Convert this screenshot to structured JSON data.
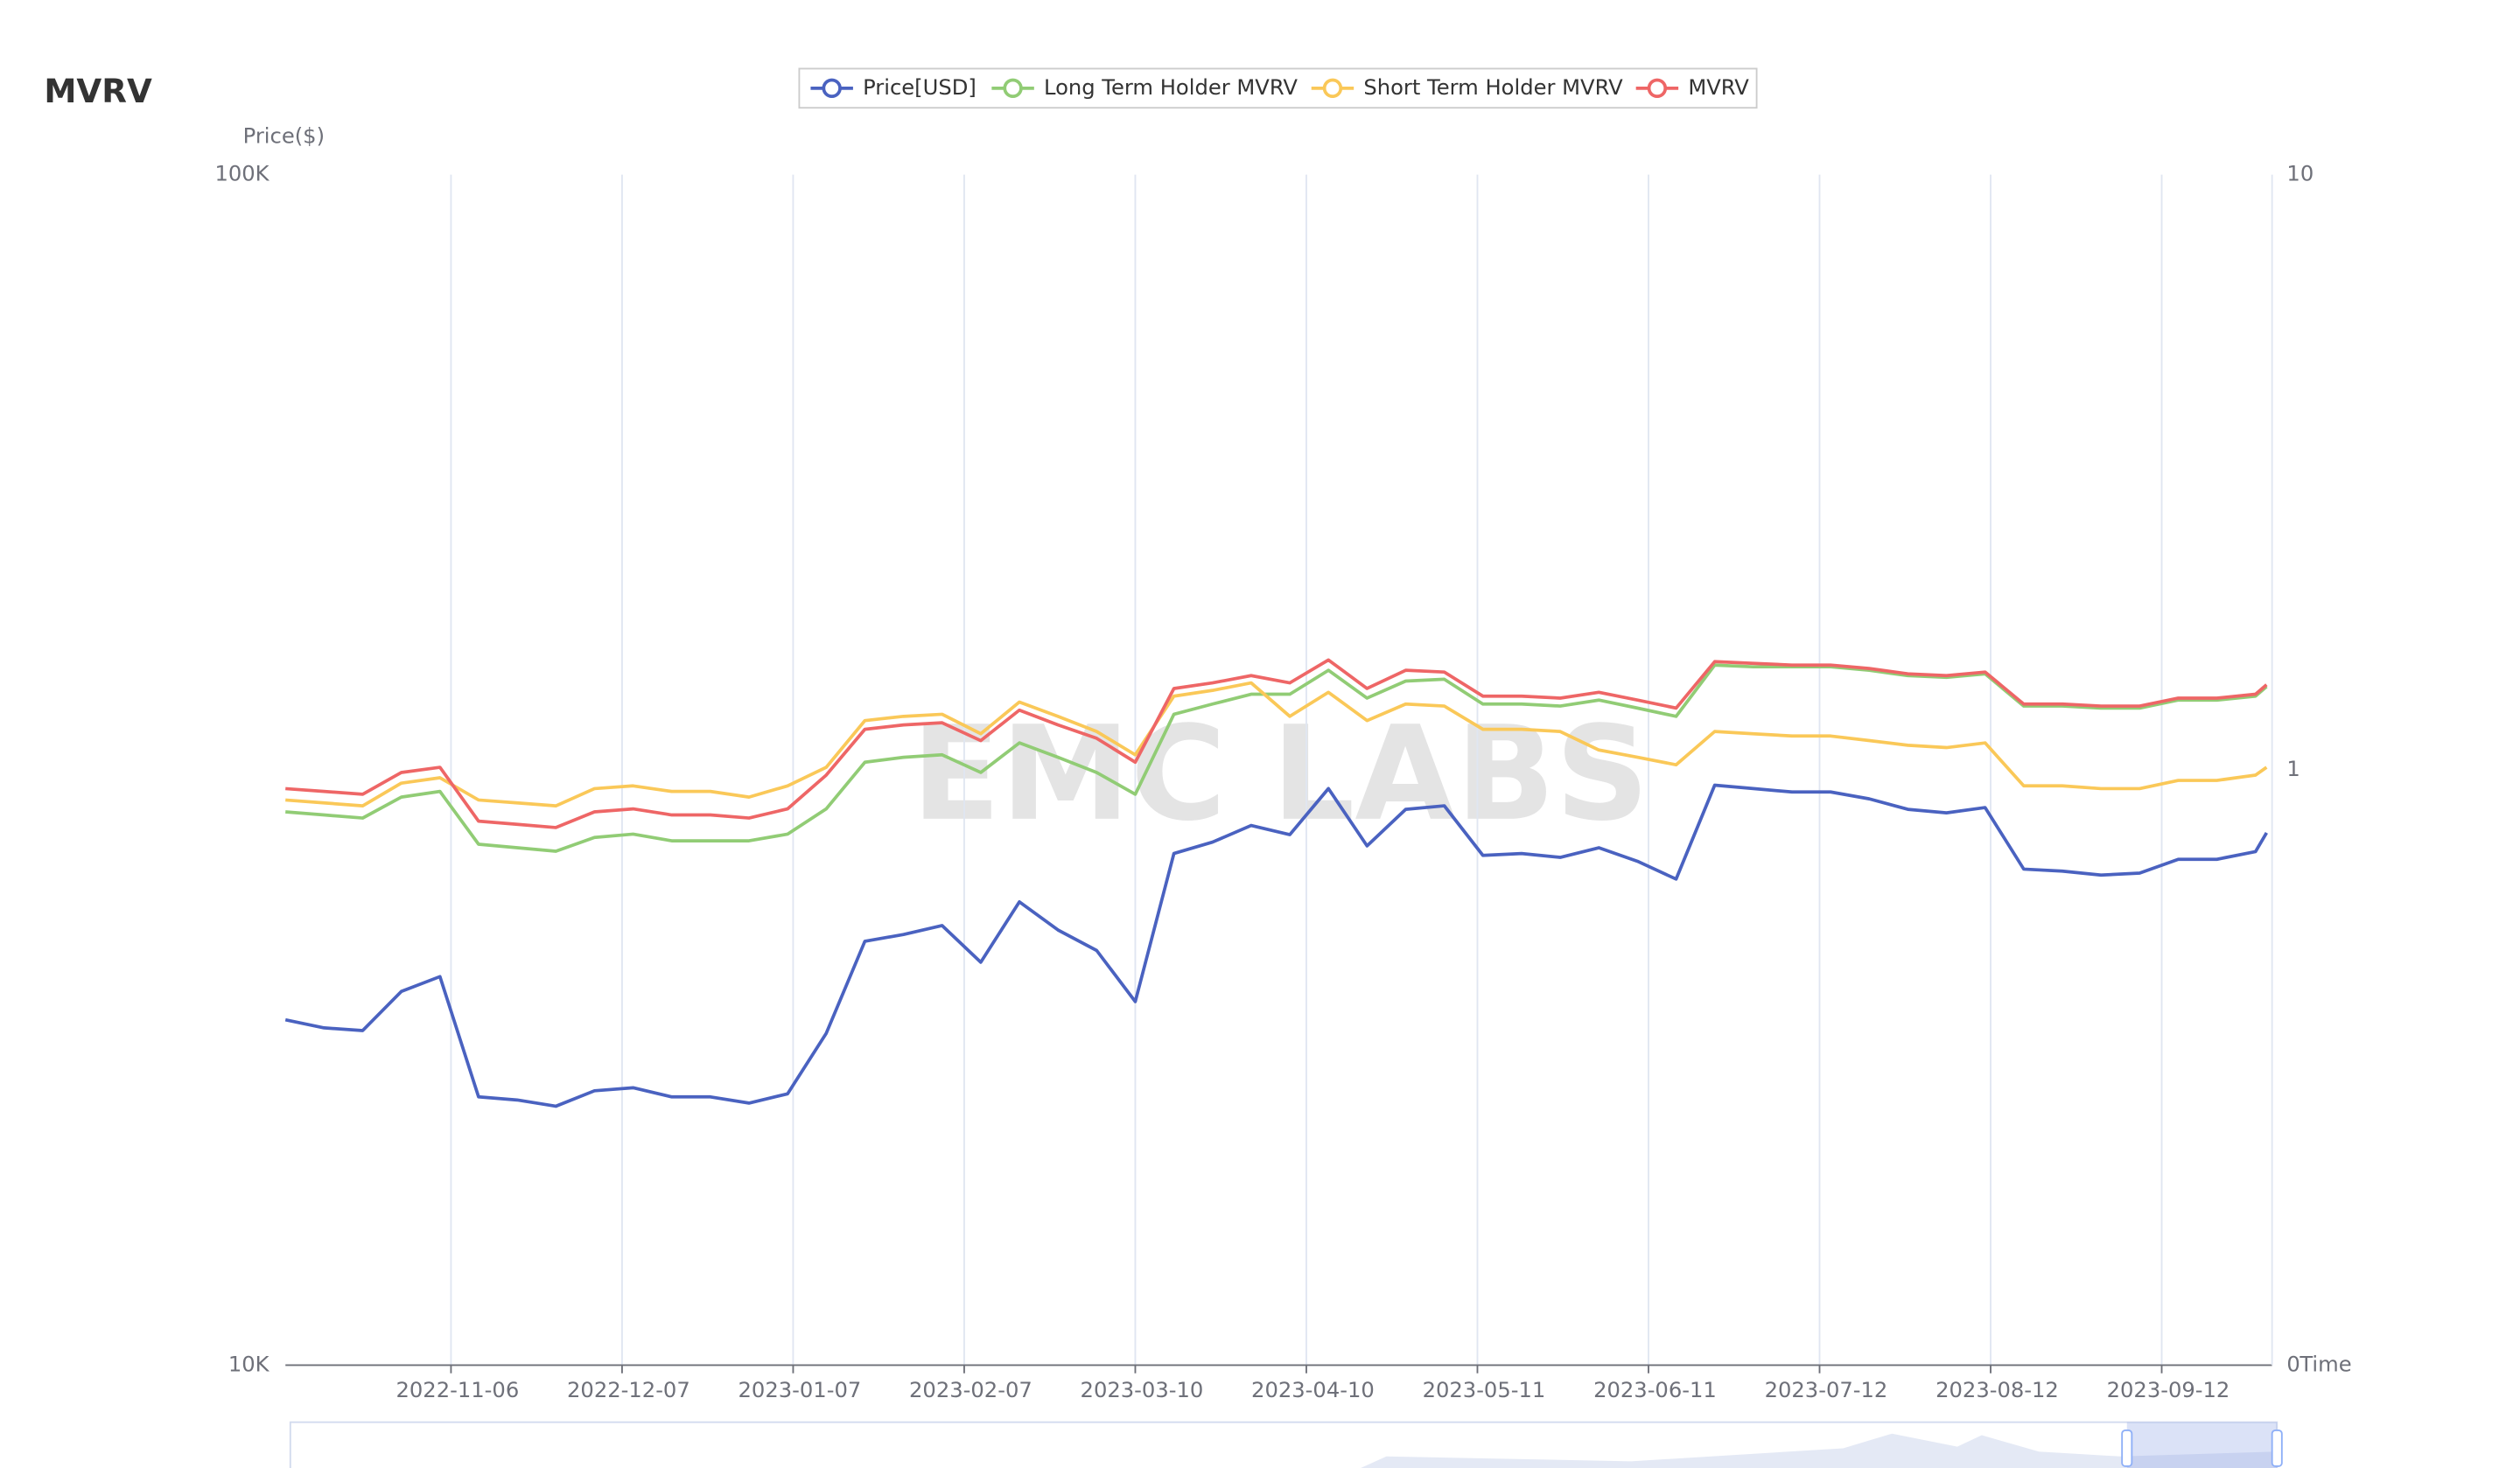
{
  "chart_data": {
    "type": "line",
    "title": "MVRV",
    "ylabel": "Price($)",
    "xlabel": "Time",
    "watermark": "EMC LABS",
    "log_scale": true,
    "grid": "x",
    "x": [
      "2022-10-07",
      "2022-10-14",
      "2022-10-21",
      "2022-10-28",
      "2022-11-04",
      "2022-11-11",
      "2022-11-18",
      "2022-11-25",
      "2022-12-02",
      "2022-12-09",
      "2022-12-16",
      "2022-12-23",
      "2022-12-30",
      "2023-01-06",
      "2023-01-13",
      "2023-01-20",
      "2023-01-27",
      "2023-02-03",
      "2023-02-10",
      "2023-02-17",
      "2023-02-24",
      "2023-03-03",
      "2023-03-10",
      "2023-03-17",
      "2023-03-24",
      "2023-03-31",
      "2023-04-07",
      "2023-04-14",
      "2023-04-21",
      "2023-04-28",
      "2023-05-05",
      "2023-05-12",
      "2023-05-19",
      "2023-05-26",
      "2023-06-02",
      "2023-06-09",
      "2023-06-16",
      "2023-06-23",
      "2023-06-30",
      "2023-07-07",
      "2023-07-14",
      "2023-07-21",
      "2023-07-28",
      "2023-08-04",
      "2023-08-11",
      "2023-08-18",
      "2023-08-25",
      "2023-09-01",
      "2023-09-08",
      "2023-09-15",
      "2023-09-22",
      "2023-09-29",
      "2023-10-01"
    ],
    "xlim": [
      "2022-10-07",
      "2023-10-02"
    ],
    "xticks": [
      "2022-11-06",
      "2022-12-07",
      "2023-01-07",
      "2023-02-07",
      "2023-03-10",
      "2023-04-10",
      "2023-05-11",
      "2023-06-11",
      "2023-07-12",
      "2023-08-12",
      "2023-09-12"
    ],
    "ylim": [
      10000,
      100000
    ],
    "yticks": [
      {
        "value": 10000,
        "label": "10K"
      },
      {
        "value": 100000,
        "label": "100K"
      }
    ],
    "y2lim": [
      0.1,
      10
    ],
    "y2ticks": [
      {
        "value": 0.1,
        "label": "0"
      },
      1,
      10
    ],
    "series": [
      {
        "name": "Price[USD]",
        "color": "#4a62c0",
        "values": [
          19500,
          19200,
          19100,
          20600,
          21200,
          16800,
          16700,
          16500,
          17000,
          17100,
          16800,
          16800,
          16600,
          16900,
          19000,
          22700,
          23000,
          23400,
          21800,
          24500,
          23200,
          22300,
          20200,
          26900,
          27500,
          28400,
          27900,
          30500,
          27300,
          29300,
          29500,
          26800,
          26900,
          26700,
          27200,
          26500,
          25600,
          30700,
          30500,
          30300,
          30300,
          29900,
          29300,
          29100,
          29400,
          26100,
          26000,
          25800,
          25900,
          26600,
          26600,
          27000,
          28000
        ]
      },
      {
        "name": "Long Term Holder MVRV",
        "color": "#91cc75",
        "axis": "y2",
        "values": [
          0.85,
          0.84,
          0.83,
          0.9,
          0.92,
          0.75,
          0.74,
          0.73,
          0.77,
          0.78,
          0.76,
          0.76,
          0.76,
          0.78,
          0.86,
          1.03,
          1.05,
          1.06,
          0.99,
          1.11,
          1.05,
          0.99,
          0.91,
          1.24,
          1.29,
          1.34,
          1.34,
          1.47,
          1.32,
          1.41,
          1.42,
          1.29,
          1.29,
          1.28,
          1.31,
          1.27,
          1.23,
          1.5,
          1.49,
          1.49,
          1.49,
          1.47,
          1.44,
          1.43,
          1.45,
          1.28,
          1.28,
          1.27,
          1.27,
          1.31,
          1.31,
          1.33,
          1.38
        ]
      },
      {
        "name": "Short Term Holder MVRV",
        "color": "#fac858",
        "axis": "y2",
        "values": [
          0.89,
          0.88,
          0.87,
          0.95,
          0.97,
          0.89,
          0.88,
          0.87,
          0.93,
          0.94,
          0.92,
          0.92,
          0.9,
          0.94,
          1.01,
          1.21,
          1.23,
          1.24,
          1.15,
          1.3,
          1.23,
          1.16,
          1.06,
          1.33,
          1.36,
          1.4,
          1.23,
          1.35,
          1.21,
          1.29,
          1.28,
          1.17,
          1.17,
          1.16,
          1.08,
          1.05,
          1.02,
          1.16,
          1.15,
          1.14,
          1.14,
          1.12,
          1.1,
          1.09,
          1.11,
          0.94,
          0.94,
          0.93,
          0.93,
          0.96,
          0.96,
          0.98,
          1.01
        ]
      },
      {
        "name": "MVRV",
        "color": "#ee6666",
        "axis": "y2",
        "values": [
          0.93,
          0.92,
          0.91,
          0.99,
          1.01,
          0.82,
          0.81,
          0.8,
          0.85,
          0.86,
          0.84,
          0.84,
          0.83,
          0.86,
          0.98,
          1.17,
          1.19,
          1.2,
          1.12,
          1.26,
          1.19,
          1.13,
          1.03,
          1.37,
          1.4,
          1.44,
          1.4,
          1.53,
          1.37,
          1.47,
          1.46,
          1.33,
          1.33,
          1.32,
          1.35,
          1.31,
          1.27,
          1.52,
          1.51,
          1.5,
          1.5,
          1.48,
          1.45,
          1.44,
          1.46,
          1.29,
          1.29,
          1.28,
          1.28,
          1.32,
          1.32,
          1.34,
          1.39
        ]
      }
    ]
  }
}
